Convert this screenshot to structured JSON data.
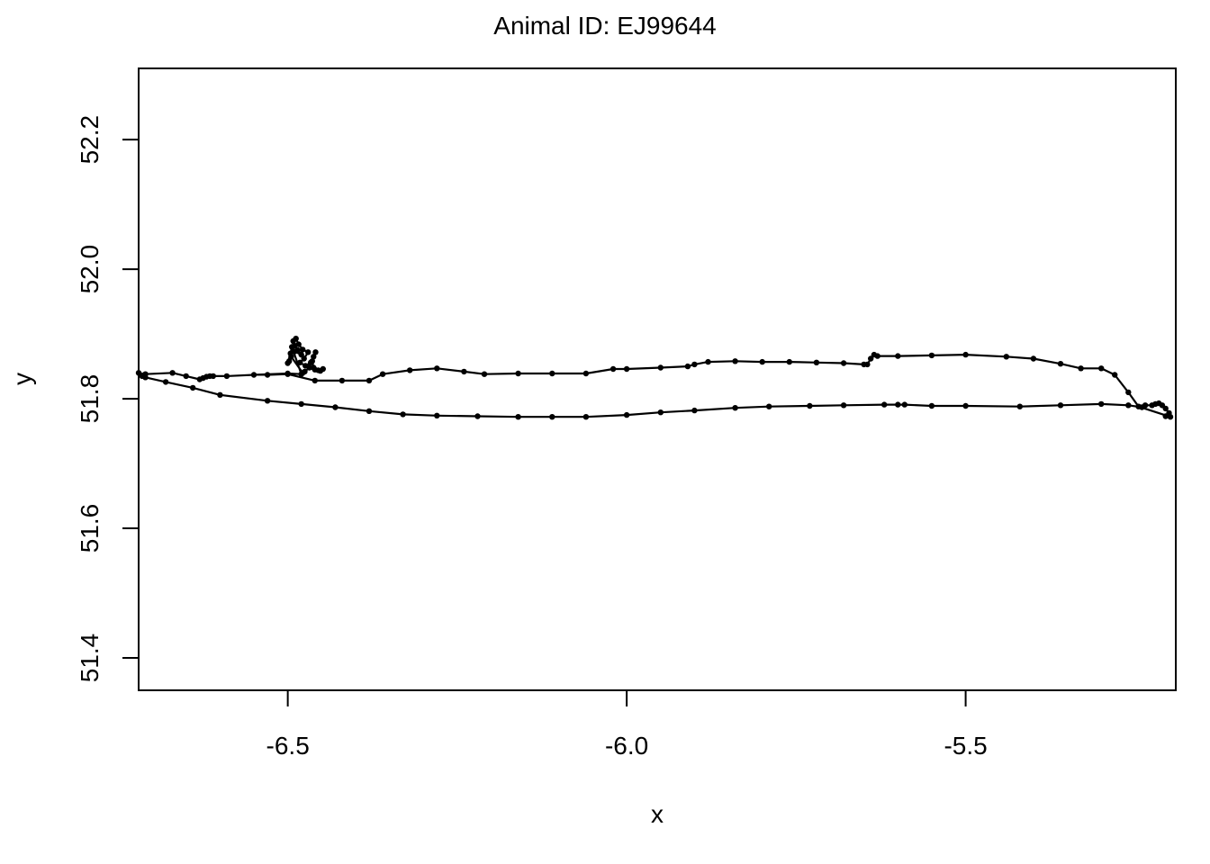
{
  "chart_data": {
    "type": "line",
    "title": "Animal ID: EJ99644",
    "xlabel": "x",
    "ylabel": "y",
    "xlim": [
      -6.72,
      -5.19
    ],
    "ylim": [
      51.35,
      52.31
    ],
    "xticks": [
      -6.5,
      -6.0,
      -5.5
    ],
    "xtick_labels": [
      "-6.5",
      "-6.0",
      "-5.5"
    ],
    "yticks": [
      51.4,
      51.6,
      51.8,
      52.0,
      52.2
    ],
    "ytick_labels": [
      "51.4",
      "51.6",
      "51.8",
      "52.0",
      "52.2"
    ],
    "grid": false,
    "legend": "none",
    "line_color": "#000000",
    "marker": "point",
    "series": [
      {
        "points": [
          [
            -6.49,
            51.873
          ],
          [
            -6.48,
            51.868
          ],
          [
            -6.485,
            51.875
          ],
          [
            -6.49,
            51.882
          ],
          [
            -6.492,
            51.889
          ],
          [
            -6.488,
            51.893
          ],
          [
            -6.484,
            51.884
          ],
          [
            -6.478,
            51.876
          ],
          [
            -6.47,
            51.872
          ],
          [
            -6.476,
            51.862
          ],
          [
            -6.482,
            51.856
          ],
          [
            -6.474,
            51.851
          ],
          [
            -6.466,
            51.856
          ],
          [
            -6.462,
            51.865
          ],
          [
            -6.459,
            51.872
          ],
          [
            -6.464,
            51.858
          ],
          [
            -6.462,
            51.848
          ],
          [
            -6.455,
            51.844
          ],
          [
            -6.448,
            51.846
          ],
          [
            -6.452,
            51.843
          ],
          [
            -6.46,
            51.845
          ],
          [
            -6.468,
            51.848
          ],
          [
            -6.475,
            51.842
          ],
          [
            -6.478,
            51.84
          ],
          [
            -6.495,
            51.865
          ],
          [
            -6.498,
            51.858
          ],
          [
            -6.5,
            51.855
          ],
          [
            -6.496,
            51.87
          ],
          [
            -6.494,
            51.88
          ],
          [
            -6.48,
            51.838
          ],
          [
            -6.5,
            51.839
          ],
          [
            -6.55,
            51.837
          ],
          [
            -6.59,
            51.835
          ],
          [
            -6.61,
            51.835
          ],
          [
            -6.615,
            51.835
          ],
          [
            -6.62,
            51.834
          ],
          [
            -6.625,
            51.832
          ],
          [
            -6.63,
            51.83
          ],
          [
            -6.65,
            51.835
          ],
          [
            -6.67,
            51.84
          ],
          [
            -6.71,
            51.838
          ],
          [
            -6.72,
            51.84
          ],
          [
            -6.715,
            51.835
          ],
          [
            -6.71,
            51.833
          ],
          [
            -6.68,
            51.826
          ],
          [
            -6.64,
            51.817
          ],
          [
            -6.6,
            51.806
          ],
          [
            -6.53,
            51.797
          ],
          [
            -6.48,
            51.792
          ],
          [
            -6.43,
            51.787
          ],
          [
            -6.38,
            51.781
          ],
          [
            -6.33,
            51.776
          ],
          [
            -6.28,
            51.774
          ],
          [
            -6.22,
            51.773
          ],
          [
            -6.16,
            51.772
          ],
          [
            -6.11,
            51.772
          ],
          [
            -6.06,
            51.772
          ],
          [
            -6.0,
            51.775
          ],
          [
            -5.95,
            51.779
          ],
          [
            -5.9,
            51.782
          ],
          [
            -5.84,
            51.786
          ],
          [
            -5.79,
            51.788
          ],
          [
            -5.73,
            51.789
          ],
          [
            -5.68,
            51.79
          ],
          [
            -5.62,
            51.791
          ],
          [
            -5.6,
            51.791
          ],
          [
            -5.59,
            51.791
          ],
          [
            -5.55,
            51.789
          ],
          [
            -5.5,
            51.789
          ],
          [
            -5.42,
            51.788
          ],
          [
            -5.36,
            51.79
          ],
          [
            -5.3,
            51.792
          ],
          [
            -5.26,
            51.79
          ],
          [
            -5.24,
            51.787
          ],
          [
            -5.235,
            51.79
          ],
          [
            -5.225,
            51.79
          ],
          [
            -5.22,
            51.792
          ],
          [
            -5.215,
            51.793
          ],
          [
            -5.21,
            51.79
          ],
          [
            -5.205,
            51.785
          ],
          [
            -5.2,
            51.778
          ],
          [
            -5.205,
            51.773
          ],
          [
            -5.198,
            51.772
          ],
          [
            -5.245,
            51.788
          ],
          [
            -5.26,
            51.81
          ],
          [
            -5.28,
            51.837
          ],
          [
            -5.3,
            51.847
          ],
          [
            -5.33,
            51.847
          ],
          [
            -5.36,
            51.854
          ],
          [
            -5.4,
            51.862
          ],
          [
            -5.44,
            51.865
          ],
          [
            -5.5,
            51.868
          ],
          [
            -5.55,
            51.867
          ],
          [
            -5.6,
            51.866
          ],
          [
            -5.63,
            51.866
          ],
          [
            -5.635,
            51.868
          ],
          [
            -5.64,
            51.862
          ],
          [
            -5.645,
            51.853
          ],
          [
            -5.65,
            51.853
          ],
          [
            -5.68,
            51.855
          ],
          [
            -5.72,
            51.856
          ],
          [
            -5.76,
            51.857
          ],
          [
            -5.8,
            51.857
          ],
          [
            -5.84,
            51.858
          ],
          [
            -5.88,
            51.857
          ],
          [
            -5.9,
            51.853
          ],
          [
            -5.91,
            51.85
          ],
          [
            -5.95,
            51.848
          ],
          [
            -6.0,
            51.846
          ],
          [
            -6.02,
            51.846
          ],
          [
            -6.06,
            51.839
          ],
          [
            -6.11,
            51.839
          ],
          [
            -6.16,
            51.839
          ],
          [
            -6.21,
            51.838
          ],
          [
            -6.24,
            51.842
          ],
          [
            -6.28,
            51.847
          ],
          [
            -6.32,
            51.844
          ],
          [
            -6.36,
            51.838
          ],
          [
            -6.38,
            51.828
          ],
          [
            -6.42,
            51.828
          ],
          [
            -6.46,
            51.828
          ],
          [
            -6.5,
            51.838
          ],
          [
            -6.53,
            51.837
          ]
        ]
      }
    ]
  }
}
